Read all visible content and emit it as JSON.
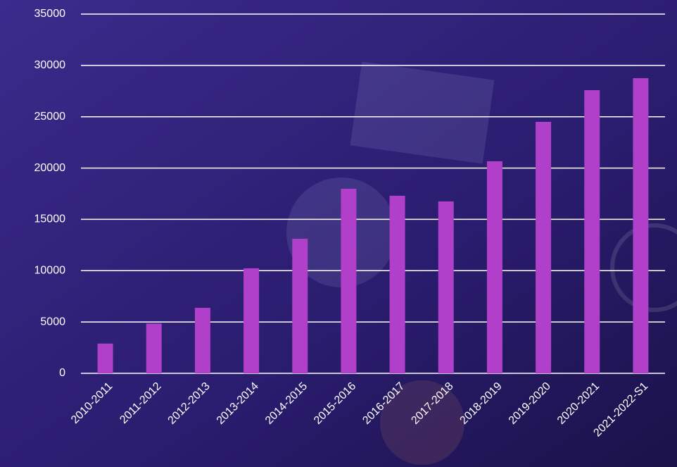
{
  "chart_data": {
    "type": "bar",
    "categories": [
      "2010-2011",
      "2011-2012",
      "2012-2013",
      "2013-2014",
      "2014-2015",
      "2015-2016",
      "2016-2017",
      "2017-2018",
      "2018-2019",
      "2019-2020",
      "2020-2021",
      "2021-2022-S1"
    ],
    "values": [
      2900,
      4850,
      6380,
      10230,
      13110,
      17980,
      17300,
      16750,
      20660,
      24500,
      27590,
      28760
    ],
    "color": "#b03fc9",
    "ylim": [
      0,
      35000
    ],
    "yticks": [
      0,
      5000,
      10000,
      15000,
      20000,
      25000,
      30000,
      35000
    ],
    "grid": true
  }
}
